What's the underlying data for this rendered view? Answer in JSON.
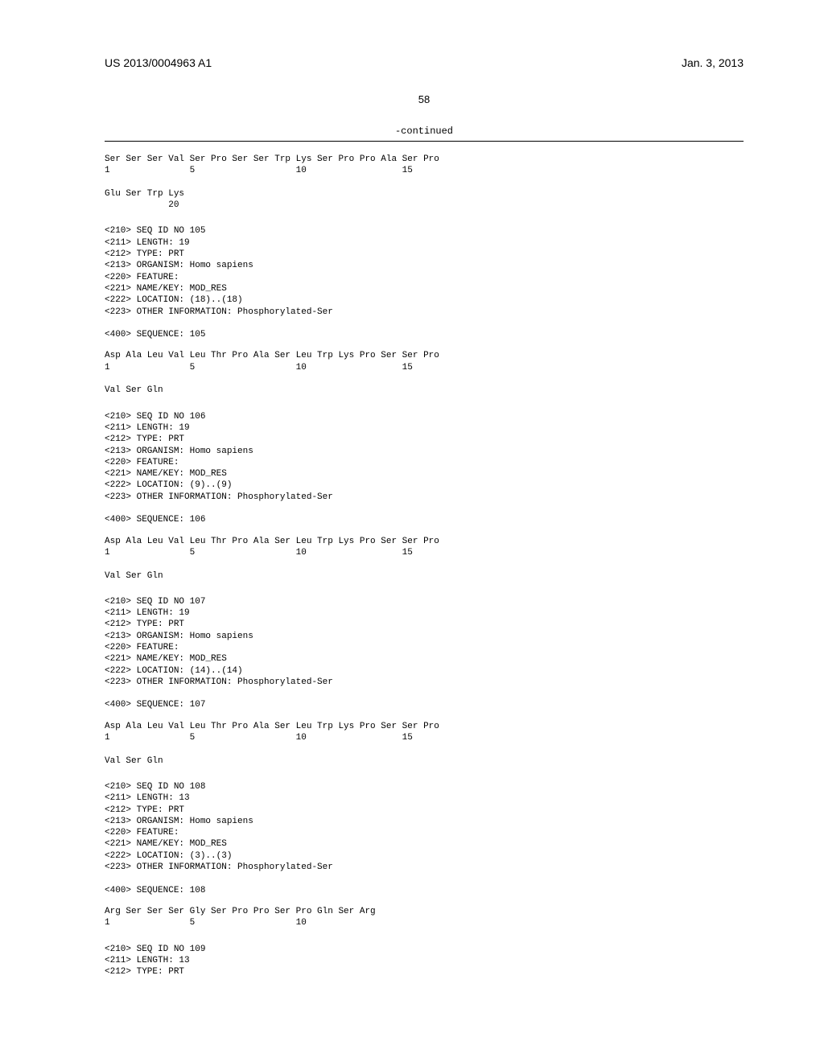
{
  "header": {
    "pub_number": "US 2013/0004963 A1",
    "pub_date": "Jan. 3, 2013"
  },
  "page_number": "58",
  "continued_label": "-continued",
  "sequences": {
    "seq104": {
      "line1": "Ser Ser Ser Val Ser Pro Ser Ser Trp Lys Ser Pro Pro Ala Ser Pro",
      "nums1": "1               5                   10                  15",
      "line2": "Glu Ser Trp Lys",
      "nums2": "            20"
    },
    "meta105": "<210> SEQ ID NO 105\n<211> LENGTH: 19\n<212> TYPE: PRT\n<213> ORGANISM: Homo sapiens\n<220> FEATURE:\n<221> NAME/KEY: MOD_RES\n<222> LOCATION: (18)..(18)\n<223> OTHER INFORMATION: Phosphorylated-Ser\n\n<400> SEQUENCE: 105",
    "seq105": {
      "line1": "Asp Ala Leu Val Leu Thr Pro Ala Ser Leu Trp Lys Pro Ser Ser Pro",
      "nums1": "1               5                   10                  15",
      "line2": "Val Ser Gln"
    },
    "meta106": "<210> SEQ ID NO 106\n<211> LENGTH: 19\n<212> TYPE: PRT\n<213> ORGANISM: Homo sapiens\n<220> FEATURE:\n<221> NAME/KEY: MOD_RES\n<222> LOCATION: (9)..(9)\n<223> OTHER INFORMATION: Phosphorylated-Ser\n\n<400> SEQUENCE: 106",
    "seq106": {
      "line1": "Asp Ala Leu Val Leu Thr Pro Ala Ser Leu Trp Lys Pro Ser Ser Pro",
      "nums1": "1               5                   10                  15",
      "line2": "Val Ser Gln"
    },
    "meta107": "<210> SEQ ID NO 107\n<211> LENGTH: 19\n<212> TYPE: PRT\n<213> ORGANISM: Homo sapiens\n<220> FEATURE:\n<221> NAME/KEY: MOD_RES\n<222> LOCATION: (14)..(14)\n<223> OTHER INFORMATION: Phosphorylated-Ser\n\n<400> SEQUENCE: 107",
    "seq107": {
      "line1": "Asp Ala Leu Val Leu Thr Pro Ala Ser Leu Trp Lys Pro Ser Ser Pro",
      "nums1": "1               5                   10                  15",
      "line2": "Val Ser Gln"
    },
    "meta108": "<210> SEQ ID NO 108\n<211> LENGTH: 13\n<212> TYPE: PRT\n<213> ORGANISM: Homo sapiens\n<220> FEATURE:\n<221> NAME/KEY: MOD_RES\n<222> LOCATION: (3)..(3)\n<223> OTHER INFORMATION: Phosphorylated-Ser\n\n<400> SEQUENCE: 108",
    "seq108": {
      "line1": "Arg Ser Ser Ser Gly Ser Pro Pro Ser Pro Gln Ser Arg",
      "nums1": "1               5                   10"
    },
    "meta109": "<210> SEQ ID NO 109\n<211> LENGTH: 13\n<212> TYPE: PRT"
  }
}
